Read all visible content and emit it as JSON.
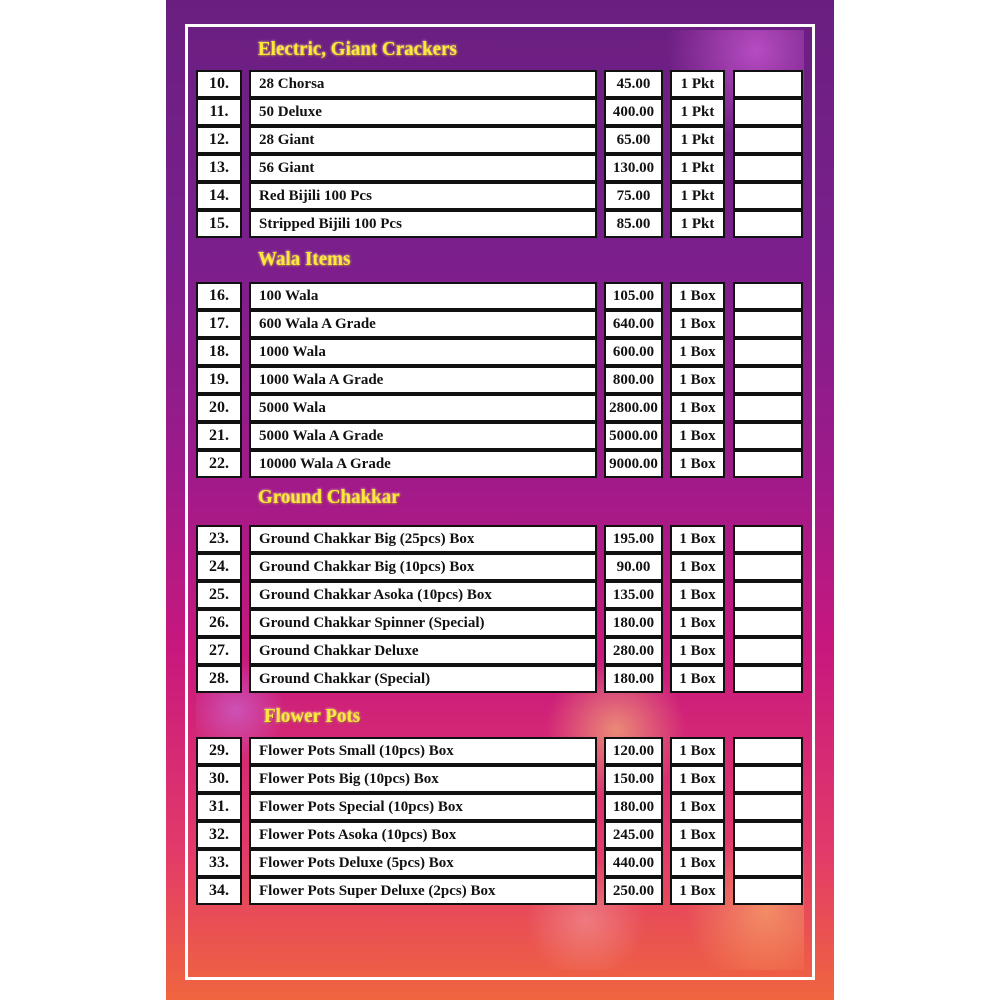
{
  "sections": [
    {
      "title": "Electric, Giant Crackers",
      "items": [
        {
          "no": "10.",
          "name": "28 Chorsa",
          "price": "45.00",
          "unit": "1 Pkt"
        },
        {
          "no": "11.",
          "name": "50 Deluxe",
          "price": "400.00",
          "unit": "1 Pkt"
        },
        {
          "no": "12.",
          "name": "28 Giant",
          "price": "65.00",
          "unit": "1 Pkt"
        },
        {
          "no": "13.",
          "name": "56 Giant",
          "price": "130.00",
          "unit": "1 Pkt"
        },
        {
          "no": "14.",
          "name": "Red Bijili 100 Pcs",
          "price": "75.00",
          "unit": "1 Pkt"
        },
        {
          "no": "15.",
          "name": "Stripped Bijili 100 Pcs",
          "price": "85.00",
          "unit": "1 Pkt"
        }
      ]
    },
    {
      "title": "Wala Items",
      "items": [
        {
          "no": "16.",
          "name": "100 Wala",
          "price": "105.00",
          "unit": "1 Box"
        },
        {
          "no": "17.",
          "name": "600 Wala A Grade",
          "price": "640.00",
          "unit": "1 Box"
        },
        {
          "no": "18.",
          "name": "1000 Wala",
          "price": "600.00",
          "unit": "1 Box"
        },
        {
          "no": "19.",
          "name": "1000 Wala A Grade",
          "price": "800.00",
          "unit": "1 Box"
        },
        {
          "no": "20.",
          "name": "5000 Wala",
          "price": "2800.00",
          "unit": "1 Box"
        },
        {
          "no": "21.",
          "name": "5000 Wala A Grade",
          "price": "5000.00",
          "unit": "1 Box"
        },
        {
          "no": "22.",
          "name": "10000 Wala A Grade",
          "price": "9000.00",
          "unit": "1 Box"
        }
      ]
    },
    {
      "title": "Ground Chakkar",
      "items": [
        {
          "no": "23.",
          "name": "Ground Chakkar Big (25pcs) Box",
          "price": "195.00",
          "unit": "1 Box"
        },
        {
          "no": "24.",
          "name": "Ground Chakkar Big (10pcs) Box",
          "price": "90.00",
          "unit": "1 Box"
        },
        {
          "no": "25.",
          "name": "Ground Chakkar Asoka (10pcs) Box",
          "price": "135.00",
          "unit": "1 Box"
        },
        {
          "no": "26.",
          "name": "Ground Chakkar Spinner (Special)",
          "price": "180.00",
          "unit": "1 Box"
        },
        {
          "no": "27.",
          "name": "Ground Chakkar Deluxe",
          "price": "280.00",
          "unit": "1 Box"
        },
        {
          "no": "28.",
          "name": "Ground Chakkar (Special)",
          "price": "180.00",
          "unit": "1 Box"
        }
      ]
    },
    {
      "title": "Flower Pots",
      "items": [
        {
          "no": "29.",
          "name": "Flower Pots Small (10pcs) Box",
          "price": "120.00",
          "unit": "1 Box"
        },
        {
          "no": "30.",
          "name": "Flower Pots Big (10pcs) Box",
          "price": "150.00",
          "unit": "1 Box"
        },
        {
          "no": "31.",
          "name": "Flower Pots Special (10pcs) Box",
          "price": "180.00",
          "unit": "1 Box"
        },
        {
          "no": "32.",
          "name": "Flower Pots Asoka (10pcs) Box",
          "price": "245.00",
          "unit": "1 Box"
        },
        {
          "no": "33.",
          "name": "Flower Pots Deluxe (5pcs) Box",
          "price": "440.00",
          "unit": "1 Box"
        },
        {
          "no": "34.",
          "name": "Flower Pots Super Deluxe (2pcs) Box",
          "price": "250.00",
          "unit": "1 Box"
        }
      ]
    }
  ],
  "colors": {
    "title": "#ffe83a",
    "bg_top": "#6a1f80",
    "bg_bottom": "#f0653e"
  }
}
